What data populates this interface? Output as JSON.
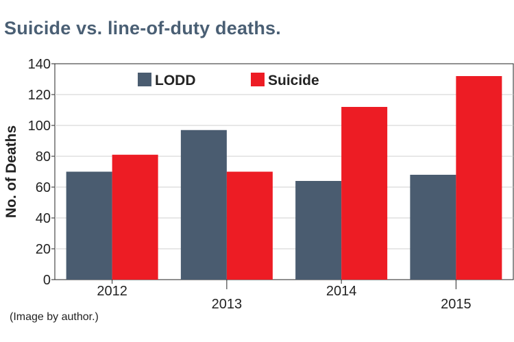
{
  "title": "Suicide vs. line-of-duty deaths.",
  "credit": "(Image by author.)",
  "colors": {
    "title": "#4a5f74",
    "lodd": "#4a5c70",
    "suicide": "#ed1c24",
    "grid": "#cfcfcf",
    "axis": "#222222"
  },
  "chart_data": {
    "type": "bar",
    "categories": [
      "2012",
      "2013",
      "2014",
      "2015"
    ],
    "series": [
      {
        "name": "LODD",
        "values": [
          70,
          97,
          64,
          68
        ]
      },
      {
        "name": "Suicide",
        "values": [
          81,
          70,
          112,
          132
        ]
      }
    ],
    "xlabel": "",
    "ylabel": "No. of Deaths",
    "ylim": [
      0,
      140
    ],
    "yticks": [
      0,
      20,
      40,
      60,
      80,
      100,
      120,
      140
    ],
    "grid": true,
    "legend_position": "top-center"
  }
}
